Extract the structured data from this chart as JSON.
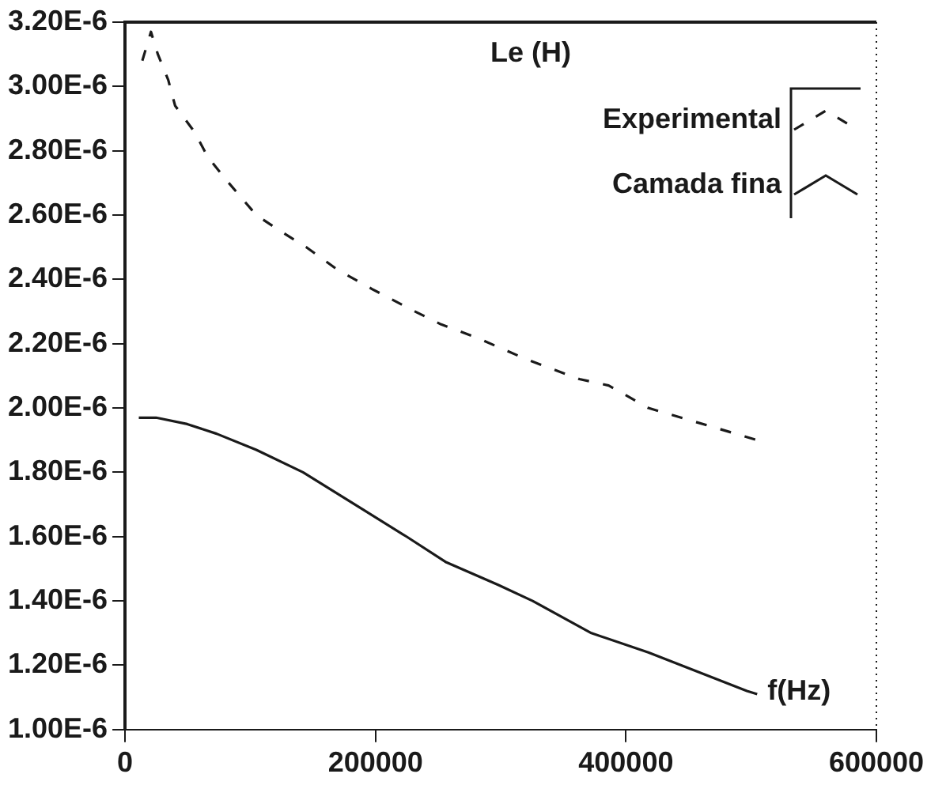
{
  "chart_data": {
    "type": "line",
    "xlabel": "f(Hz)",
    "legend_title": "Le (H)",
    "legend": "top right",
    "grid": false,
    "marker": "none",
    "xlim": [
      0,
      600000
    ],
    "xticks": [
      0,
      200000,
      400000,
      600000
    ],
    "ylim": [
      1e-06,
      3.2e-06
    ],
    "yticks": [
      {
        "value": 1e-06,
        "label": "1.00E-6"
      },
      {
        "value": 1.2e-06,
        "label": "1.20E-6"
      },
      {
        "value": 1.4e-06,
        "label": "1.40E-6"
      },
      {
        "value": 1.6e-06,
        "label": "1.60E-6"
      },
      {
        "value": 1.8e-06,
        "label": "1.80E-6"
      },
      {
        "value": 2e-06,
        "label": "2.00E-6"
      },
      {
        "value": 2.2e-06,
        "label": "2.20E-6"
      },
      {
        "value": 2.4e-06,
        "label": "2.40E-6"
      },
      {
        "value": 2.6e-06,
        "label": "2.60E-6"
      },
      {
        "value": 2.8e-06,
        "label": "2.80E-6"
      },
      {
        "value": 3e-06,
        "label": "3.00E-6"
      },
      {
        "value": 3.2e-06,
        "label": "3.20E-6"
      }
    ],
    "series": [
      {
        "name": "Experimental",
        "color": "#1a1a1a",
        "line_style": "dashed",
        "x": [
          13800,
          20700,
          26200,
          34500,
          40000,
          55200,
          66200,
          82800,
          104800,
          124100,
          144800,
          169700,
          197200,
          231700,
          252400,
          280000,
          321400,
          362800,
          386200,
          417900,
          505000
        ],
        "values": [
          3.08e-06,
          3.17e-06,
          3.1e-06,
          3.02e-06,
          2.94e-06,
          2.86e-06,
          2.78e-06,
          2.7e-06,
          2.6e-06,
          2.55e-06,
          2.5e-06,
          2.43e-06,
          2.37e-06,
          2.3e-06,
          2.26e-06,
          2.22e-06,
          2.15e-06,
          2.09e-06,
          2.07e-06,
          2e-06,
          1.9e-06
        ]
      },
      {
        "name": "Camada fina",
        "color": "#1a1a1a",
        "line_style": "solid",
        "x": [
          11000,
          24800,
          49700,
          73100,
          104800,
          142100,
          187600,
          224800,
          256600,
          297900,
          325500,
          372400,
          417900,
          496600,
          504800
        ],
        "values": [
          1.97e-06,
          1.97e-06,
          1.95e-06,
          1.92e-06,
          1.87e-06,
          1.8e-06,
          1.69e-06,
          1.6e-06,
          1.52e-06,
          1.45e-06,
          1.4e-06,
          1.3e-06,
          1.24e-06,
          1.12e-06,
          1.11e-06
        ]
      }
    ]
  }
}
